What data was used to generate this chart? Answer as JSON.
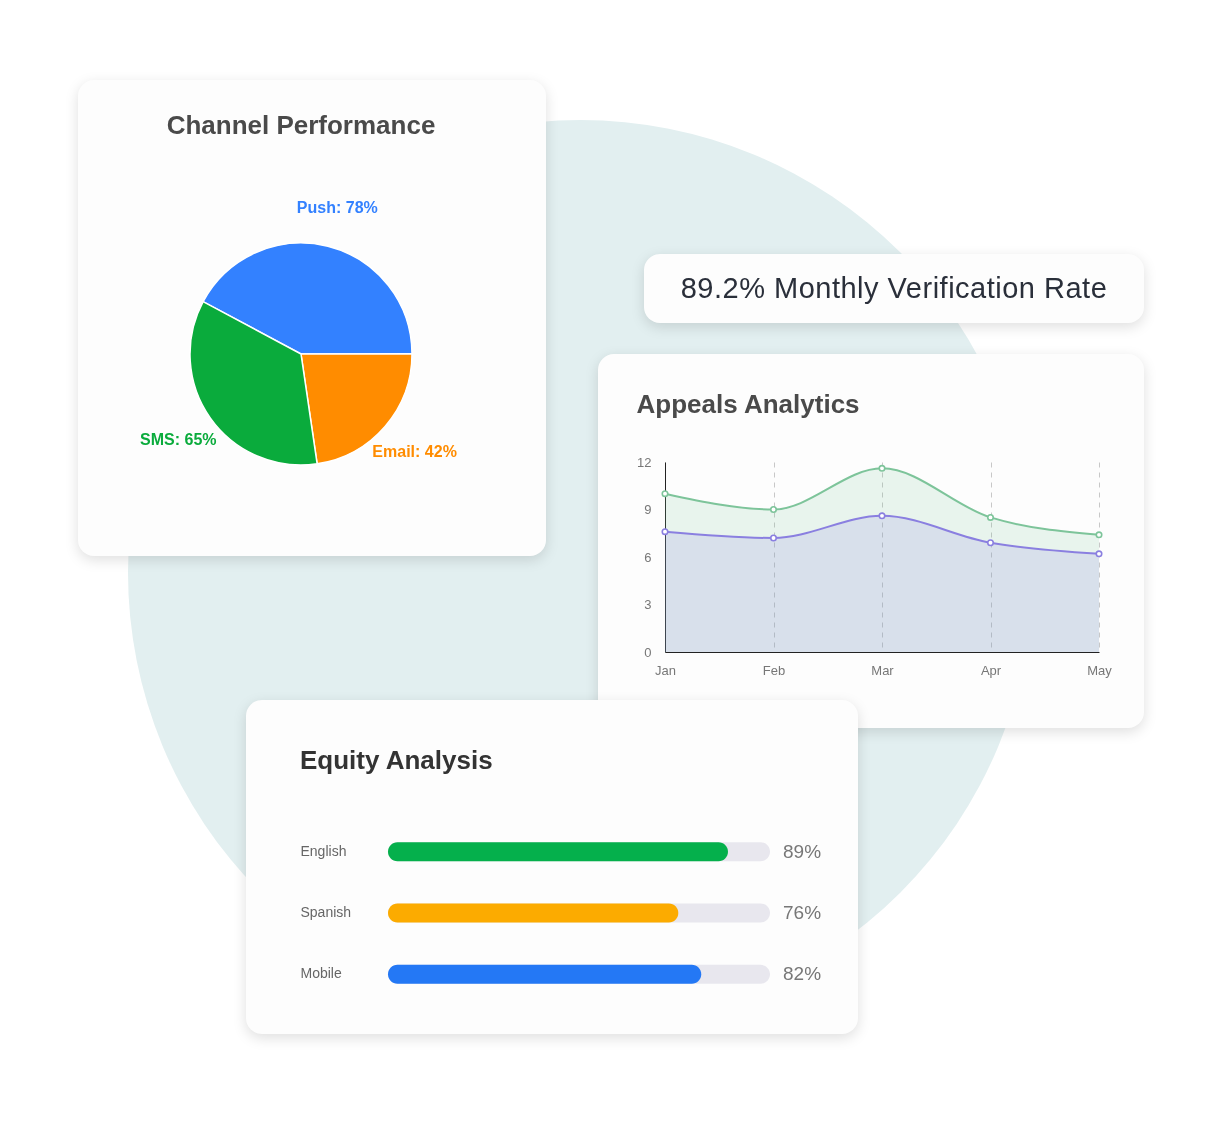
{
  "chart_data": [
    {
      "type": "pie",
      "title": "Channel Performance",
      "categories": [
        "Push",
        "Email",
        "SMS"
      ],
      "values": [
        78,
        42,
        65
      ],
      "colors": [
        "#3381ff",
        "#ff8c00",
        "#0aab3c"
      ],
      "value_labels": [
        "78%",
        "42%",
        "65%"
      ]
    },
    {
      "type": "other",
      "title": "89.2% Monthly Verification Rate"
    },
    {
      "type": "area",
      "title": "Appeals Analytics",
      "categories": [
        "Jan",
        "Feb",
        "Mar",
        "Apr",
        "May"
      ],
      "series": [
        {
          "color": "#7dc49a",
          "values": [
            10.0,
            9.0,
            11.6,
            8.5,
            7.4
          ]
        },
        {
          "color": "#8a7fe0",
          "values": [
            7.6,
            7.2,
            8.6,
            6.9,
            6.2
          ]
        }
      ],
      "ylim": [
        0,
        12
      ],
      "yticks": [
        0,
        3,
        6,
        9,
        12
      ],
      "grid": "x",
      "marker": "circle",
      "line_style": "solid"
    },
    {
      "type": "bar",
      "orientation": "horizontal",
      "title": "Equity Analysis",
      "categories": [
        "English",
        "Spanish",
        "Mobile"
      ],
      "values": [
        89,
        76,
        82
      ],
      "colors": [
        "#05b04c",
        "#fcab00",
        "#2478f5"
      ],
      "xlim": [
        0,
        100
      ],
      "value_labels": [
        "89%",
        "76%",
        "82%"
      ]
    }
  ]
}
